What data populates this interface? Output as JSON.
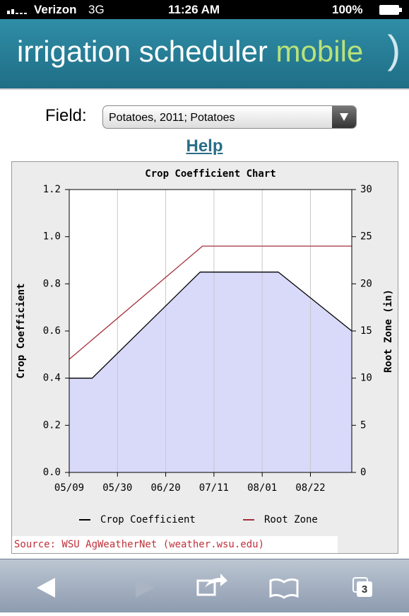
{
  "status_bar": {
    "carrier": "Verizon",
    "network": "3G",
    "time": "11:26 AM",
    "battery": "100%"
  },
  "header": {
    "title": "irrigation scheduler",
    "title_accent": "mobile"
  },
  "field": {
    "label": "Field:",
    "selected": "Potatoes, 2011; Potatoes"
  },
  "help": "Help",
  "chart_data": {
    "type": "line",
    "title": "Crop Coefficient Chart",
    "ylabel": "Crop Coefficient",
    "y2label": "Root Zone (in)",
    "source": "Source: WSU AgWeatherNet (weather.wsu.edu)",
    "xlim": [
      "05/09",
      "09/09"
    ],
    "xticks": [
      "05/09",
      "05/30",
      "06/20",
      "07/11",
      "08/01",
      "08/22"
    ],
    "ylim": [
      0,
      1.2
    ],
    "yticks": [
      {
        "value": 0,
        "label": "0.0"
      },
      0.2,
      0.4,
      0.6,
      0.8,
      {
        "value": 1,
        "label": "1.0"
      },
      1.2
    ],
    "y2lim": [
      0,
      30
    ],
    "y2ticks": [
      0,
      5,
      10,
      15,
      20,
      25,
      30
    ],
    "grid": true,
    "area_color": "#d9d9fa",
    "series": [
      {
        "name": "Crop Coefficient",
        "color": "#000000",
        "fill": true,
        "x": [
          "05/09",
          "05/19",
          "07/05",
          "08/08",
          "09/09"
        ],
        "values": [
          0.4,
          0.4,
          0.85,
          0.85,
          0.6
        ]
      },
      {
        "name": "Root Zone",
        "color": "#a3303a",
        "axis": "y2",
        "x": [
          "05/09",
          "07/06",
          "09/09"
        ],
        "values": [
          12,
          24,
          24
        ]
      }
    ]
  },
  "toolbar": {
    "tabs": "3"
  }
}
